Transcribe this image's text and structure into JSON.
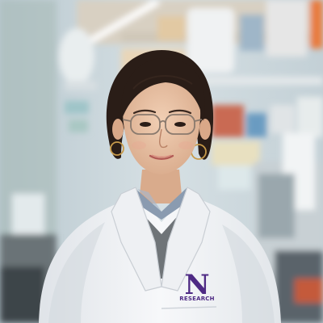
{
  "photo": {
    "subject": "researcher-portrait",
    "setting": "laboratory",
    "coat_emblem": {
      "letter": "N",
      "text": "RESEARCH",
      "color": "#4e2a84"
    },
    "colors": {
      "lab_coat": "#f4f5f7",
      "sweater": "#6f7478",
      "shirt": "#8a9bb0",
      "hair": "#2a1d17",
      "skin": "#e8c3a6",
      "background_wall": "#c9d6dc"
    }
  }
}
